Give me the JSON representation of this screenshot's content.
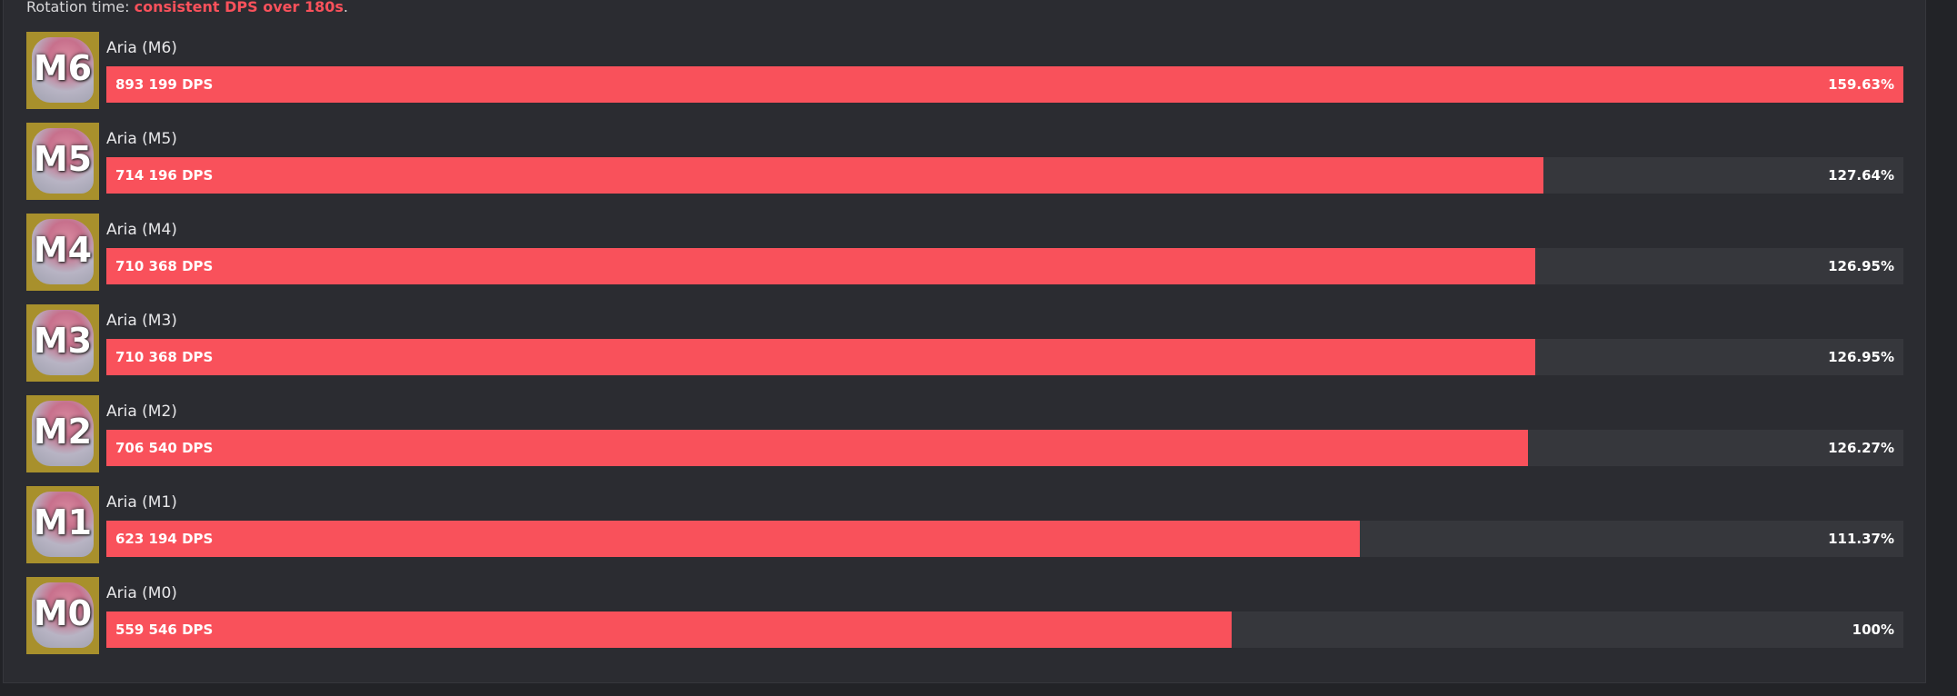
{
  "rotation": {
    "prefix": "Rotation time: ",
    "highlight": "consistent DPS over 180s",
    "suffix": "."
  },
  "colors": {
    "bar": "#f9515b",
    "track": "#36373c",
    "background": "#2b2c31"
  },
  "rows": [
    {
      "level": "M6",
      "name": "Aria (M6)",
      "dps": "893 199 DPS",
      "percent_label": "159.63%",
      "percent": 159.63
    },
    {
      "level": "M5",
      "name": "Aria (M5)",
      "dps": "714 196 DPS",
      "percent_label": "127.64%",
      "percent": 127.64
    },
    {
      "level": "M4",
      "name": "Aria (M4)",
      "dps": "710 368 DPS",
      "percent_label": "126.95%",
      "percent": 126.95
    },
    {
      "level": "M3",
      "name": "Aria (M3)",
      "dps": "710 368 DPS",
      "percent_label": "126.95%",
      "percent": 126.95
    },
    {
      "level": "M2",
      "name": "Aria (M2)",
      "dps": "706 540 DPS",
      "percent_label": "126.27%",
      "percent": 126.27
    },
    {
      "level": "M1",
      "name": "Aria (M1)",
      "dps": "623 194 DPS",
      "percent_label": "111.37%",
      "percent": 111.37
    },
    {
      "level": "M0",
      "name": "Aria (M0)",
      "dps": "559 546 DPS",
      "percent_label": "100%",
      "percent": 100
    }
  ]
}
